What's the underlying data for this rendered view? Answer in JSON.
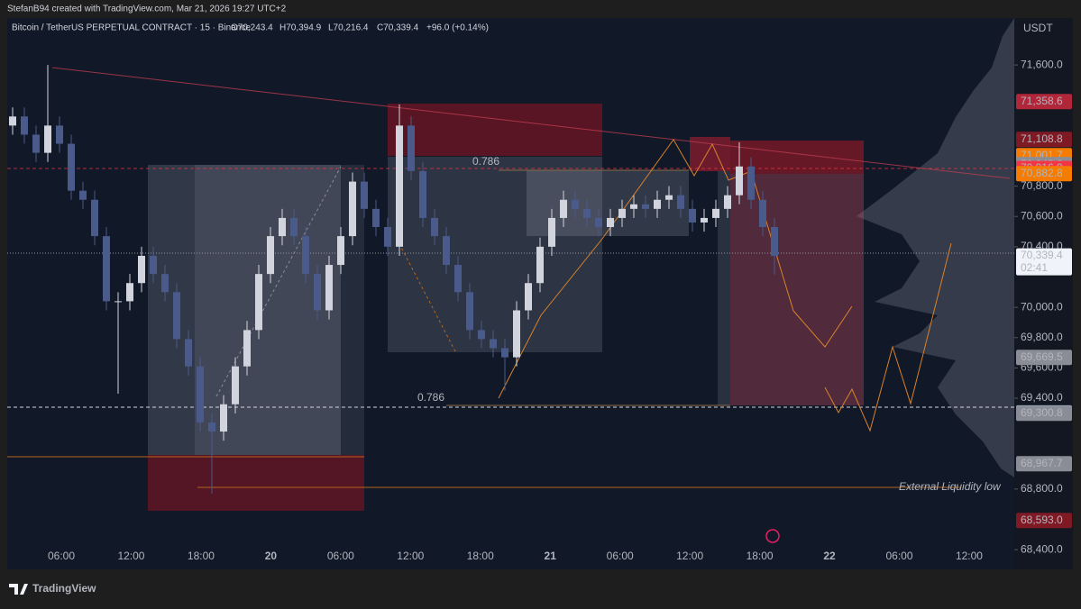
{
  "header": {
    "credit": "StefanB94 created with TradingView.com, Mar 21, 2026 19:27 UTC+2",
    "symbol": "Bitcoin / TetherUS PERPETUAL CONTRACT · 15 · Binance",
    "ohlc": [
      "O70,243.4",
      "H70,394.9",
      "L70,216.4",
      "C70,339.4"
    ],
    "change": "+96.0 (+0.14%)"
  },
  "footer": {
    "logo": "TradingView"
  },
  "chart_data": {
    "type": "candlestick",
    "currency": "USDT",
    "open": [
      71200,
      71260,
      71140,
      71020,
      71200,
      71080,
      70770,
      70710,
      70470,
      70040,
      70040,
      70160,
      70340,
      70220,
      70100,
      69790,
      69610,
      69240,
      69180,
      69360,
      69610,
      69850,
      70220,
      70470,
      70590,
      70470,
      70220,
      69980,
      70280,
      70470,
      70830,
      70650,
      70530,
      70400,
      71200,
      70900,
      70590,
      70470,
      70280,
      70100,
      69850,
      69790,
      69730,
      69670,
      69980,
      70160,
      70400,
      70590,
      70710,
      70650,
      70590,
      70530,
      70590,
      70650,
      70680,
      70650,
      70710,
      70740,
      70650,
      70560,
      70590,
      70650,
      70740,
      70930,
      70710,
      70530
    ],
    "high": [
      71320,
      71320,
      71200,
      71600,
      71260,
      71140,
      70830,
      70770,
      70530,
      70100,
      70220,
      70400,
      70400,
      70280,
      70160,
      69850,
      69670,
      69300,
      69420,
      69670,
      69910,
      70280,
      70530,
      70650,
      70650,
      70530,
      70280,
      70340,
      70530,
      70890,
      70890,
      70710,
      70590,
      71340,
      71260,
      70960,
      70650,
      70530,
      70340,
      70160,
      69910,
      69850,
      69790,
      70040,
      70220,
      70460,
      70650,
      70770,
      70770,
      70710,
      70650,
      70650,
      70710,
      70740,
      70740,
      70770,
      70800,
      70800,
      70710,
      70650,
      70710,
      70800,
      71090,
      70990,
      70770,
      70590
    ],
    "low": [
      71140,
      71080,
      70960,
      70960,
      71020,
      70710,
      70650,
      70410,
      69980,
      69430,
      69980,
      70100,
      70160,
      70040,
      69730,
      69550,
      69180,
      68770,
      69120,
      69300,
      69550,
      69790,
      70160,
      70410,
      70410,
      70160,
      69920,
      69920,
      70220,
      70410,
      70590,
      70470,
      70340,
      70340,
      70840,
      70530,
      70410,
      70220,
      70040,
      69790,
      69730,
      69670,
      69450,
      69610,
      69920,
      70100,
      70340,
      70530,
      70590,
      70530,
      70470,
      70470,
      70530,
      70590,
      70590,
      70590,
      70650,
      70590,
      70500,
      70500,
      70530,
      70590,
      70680,
      70650,
      70470,
      70216.4
    ],
    "close": [
      71260,
      71140,
      71020,
      71200,
      71080,
      70770,
      70710,
      70470,
      70040,
      70040,
      70160,
      70340,
      70220,
      70100,
      69790,
      69610,
      69240,
      69180,
      69360,
      69610,
      69850,
      70220,
      70470,
      70590,
      70470,
      70220,
      69980,
      70280,
      70470,
      70830,
      70650,
      70530,
      70400,
      71200,
      70900,
      70590,
      70470,
      70280,
      70100,
      69850,
      69790,
      69730,
      69670,
      69980,
      70160,
      70400,
      70590,
      70710,
      70650,
      70590,
      70530,
      70590,
      70650,
      70680,
      70650,
      70710,
      70740,
      70650,
      70560,
      70590,
      70650,
      70740,
      70930,
      70710,
      70530,
      70339.4
    ],
    "up_color": "#d1d4dc",
    "down_color": "#4a5a8a",
    "ylim": [
      68270,
      71910
    ],
    "yticks": [
      {
        "value": 71600,
        "label": "71,600.0"
      },
      {
        "value": 70800,
        "label": "70,800.0"
      },
      {
        "value": 70600,
        "label": "70,600.0"
      },
      {
        "value": 70400,
        "label": "70,400.0"
      },
      {
        "value": 70000,
        "label": "70,000.0"
      },
      {
        "value": 69800,
        "label": "69,800.0"
      },
      {
        "value": 69600,
        "label": "69,600.0"
      },
      {
        "value": 69400,
        "label": "69,400.0"
      },
      {
        "value": 68800,
        "label": "68,800.0"
      },
      {
        "value": 68400,
        "label": "68,400.0"
      }
    ],
    "x_labels": [
      "06:00",
      "12:00",
      "18:00",
      "20",
      "06:00",
      "12:00",
      "18:00",
      "21",
      "06:00",
      "12:00",
      "18:00",
      "22",
      "06:00",
      "12:00"
    ],
    "price_tags": [
      {
        "value": 71358.6,
        "label": "71,358.6",
        "color": "#b2263a"
      },
      {
        "value": 71108.8,
        "label": "71,108.8",
        "color": "#7f1a24"
      },
      {
        "value": 71001.7,
        "label": "71,001.7",
        "color": "#f57c00"
      },
      {
        "value": 70942.3,
        "label": "70,942.3",
        "color": "#8a8d96"
      },
      {
        "value": 70916.9,
        "label": "70,916.9",
        "color": "#f23645"
      },
      {
        "value": 70882.8,
        "label": "70,882.8",
        "color": "#f57c00"
      },
      {
        "value": 69669.5,
        "label": "69,669.5",
        "color": "#8a8d96"
      },
      {
        "value": 69302.4,
        "label": "69,302.4",
        "color": "#bbdefb"
      },
      {
        "value": 69300.8,
        "label": "69,300.8",
        "color": "#8a8d96"
      },
      {
        "value": 68967.7,
        "label": "68,967.7",
        "color": "#8a8d96"
      },
      {
        "value": 68593.0,
        "label": "68,593.0",
        "color": "#7f1a24"
      }
    ],
    "last_price": {
      "value": 70339.4,
      "label": "70,339.4",
      "countdown": "02:41"
    },
    "annotations": [
      "0.786",
      "0.786",
      "External Liquidity low"
    ]
  }
}
